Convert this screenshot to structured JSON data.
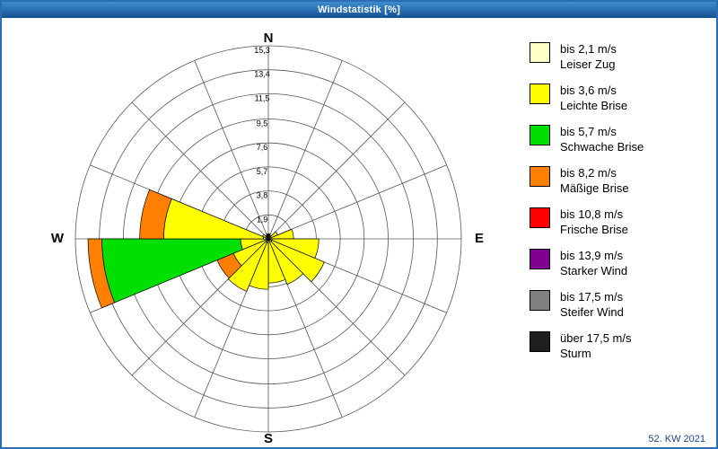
{
  "window": {
    "title": "Windstatistik [%]",
    "footer": "52. KW 2021"
  },
  "chart_data": {
    "type": "windrose",
    "title": "Windstatistik [%]",
    "unit": "%",
    "grid": {
      "rings": 8,
      "spokes": 16,
      "ring_max": 15.3
    },
    "compass": {
      "n": "N",
      "e": "E",
      "s": "S",
      "w": "W"
    },
    "ring_values": [
      1.9,
      3.8,
      5.7,
      7.6,
      9.5,
      11.5,
      13.4,
      15.3
    ],
    "ring_labels": [
      "1,9",
      "3,8",
      "5,7",
      "7,6",
      "9,5",
      "11,5",
      "13,4",
      "15,3"
    ],
    "classes": [
      {
        "id": "c1",
        "speed": "bis 2,1 m/s",
        "name": "Leiser Zug",
        "color": "#FFFFC8"
      },
      {
        "id": "c2",
        "speed": "bis 3,6 m/s",
        "name": "Leichte Brise",
        "color": "#FFFF00"
      },
      {
        "id": "c3",
        "speed": "bis 5,7 m/s",
        "name": "Schwache Brise",
        "color": "#00E000"
      },
      {
        "id": "c4",
        "speed": "bis 8,2 m/s",
        "name": "Mäßige Brise",
        "color": "#FF8000"
      },
      {
        "id": "c5",
        "speed": "bis 10,8 m/s",
        "name": "Frische Brise",
        "color": "#FF0000"
      },
      {
        "id": "c6",
        "speed": "bis 13,9 m/s",
        "name": "Starker Wind",
        "color": "#800090"
      },
      {
        "id": "c7",
        "speed": "bis 17,5 m/s",
        "name": "Steifer Wind",
        "color": "#808080"
      },
      {
        "id": "c8",
        "speed": "über 17,5 m/s",
        "name": "Sturm",
        "color": "#1e1e1e"
      }
    ],
    "sector_span": 22.5,
    "sectors": [
      {
        "dir": "N",
        "start": 0,
        "segments": [
          {
            "cls": "c8",
            "v": 0.4
          }
        ]
      },
      {
        "dir": "NNE",
        "start": 22.5,
        "segments": [
          {
            "cls": "c8",
            "v": 0.3
          }
        ]
      },
      {
        "dir": "NE",
        "start": 45,
        "segments": [
          {
            "cls": "c2",
            "v": 0.8
          }
        ]
      },
      {
        "dir": "ENE",
        "start": 67.5,
        "segments": [
          {
            "cls": "c2",
            "v": 2.0
          }
        ]
      },
      {
        "dir": "E",
        "start": 90,
        "segments": [
          {
            "cls": "c1",
            "v": 0.3
          },
          {
            "cls": "c2",
            "v": 3.7
          }
        ]
      },
      {
        "dir": "ESE",
        "start": 112.5,
        "segments": [
          {
            "cls": "c1",
            "v": 0.3
          },
          {
            "cls": "c2",
            "v": 4.5
          }
        ]
      },
      {
        "dir": "SE",
        "start": 135,
        "segments": [
          {
            "cls": "c2",
            "v": 3.9
          }
        ]
      },
      {
        "dir": "SSE",
        "start": 157.5,
        "segments": [
          {
            "cls": "c2",
            "v": 3.5
          }
        ]
      },
      {
        "dir": "S",
        "start": 180,
        "segments": [
          {
            "cls": "c1",
            "v": 0.3
          },
          {
            "cls": "c2",
            "v": 3.7
          }
        ]
      },
      {
        "dir": "SSW",
        "start": 202.5,
        "segments": [
          {
            "cls": "c1",
            "v": 0.3
          },
          {
            "cls": "c2",
            "v": 4.2
          }
        ]
      },
      {
        "dir": "SW",
        "start": 225,
        "segments": [
          {
            "cls": "c2",
            "v": 3.0
          },
          {
            "cls": "c4",
            "v": 1.4
          }
        ]
      },
      {
        "dir": "WSW",
        "start": 247.5,
        "segments": [
          {
            "cls": "c2",
            "v": 2.2
          },
          {
            "cls": "c3",
            "v": 11.0
          },
          {
            "cls": "c4",
            "v": 1.1
          }
        ]
      },
      {
        "dir": "W",
        "start": 270,
        "segments": [
          {
            "cls": "c1",
            "v": 0.4
          },
          {
            "cls": "c2",
            "v": 7.9
          },
          {
            "cls": "c4",
            "v": 1.9
          }
        ]
      },
      {
        "dir": "WNW",
        "start": 292.5,
        "segments": [
          {
            "cls": "c2",
            "v": 0.5
          }
        ]
      },
      {
        "dir": "NW",
        "start": 315,
        "segments": [
          {
            "cls": "c8",
            "v": 0.3
          }
        ]
      },
      {
        "dir": "NNW",
        "start": 337.5,
        "segments": [
          {
            "cls": "c8",
            "v": 0.4
          }
        ]
      }
    ]
  }
}
